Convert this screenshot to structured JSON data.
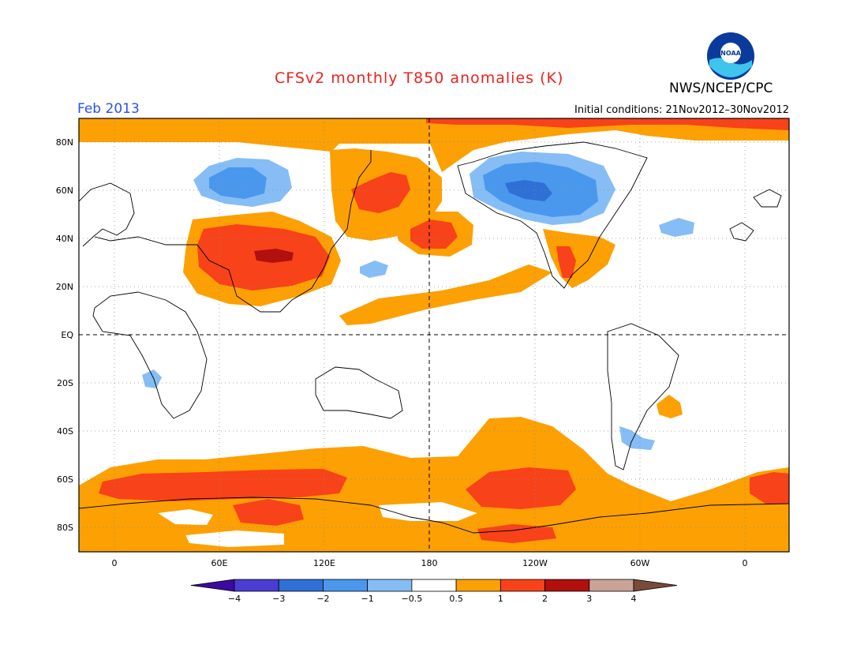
{
  "header": {
    "title": "CFSv2 monthly T850 anomalies (K)",
    "agency": "NWS/NCEP/CPC",
    "month": "Feb 2013",
    "initial_conditions": "Initial conditions: 21Nov2012–30Nov2012",
    "logo_text": "NOAA"
  },
  "map": {
    "lat_labels": [
      "80N",
      "60N",
      "40N",
      "20N",
      "EQ",
      "20S",
      "40S",
      "60S",
      "80S"
    ],
    "lon_labels": [
      "0",
      "60E",
      "120E",
      "180",
      "120W",
      "60W",
      "0"
    ]
  },
  "colorbar": {
    "tick_labels": [
      "−4",
      "−3",
      "−2",
      "−1",
      "−0.5",
      "0.5",
      "1",
      "2",
      "3",
      "4"
    ],
    "colors": [
      "#3c0aa0",
      "#4b3cd2",
      "#2f6fd6",
      "#4a98ee",
      "#86bdf5",
      "#ffffff",
      "#fca003",
      "#f8421a",
      "#b1100e",
      "#c9a395",
      "#7a4a38"
    ]
  },
  "colors": {
    "title": "#e8231e",
    "month": "#2a52e8",
    "background": "#ffffff"
  }
}
